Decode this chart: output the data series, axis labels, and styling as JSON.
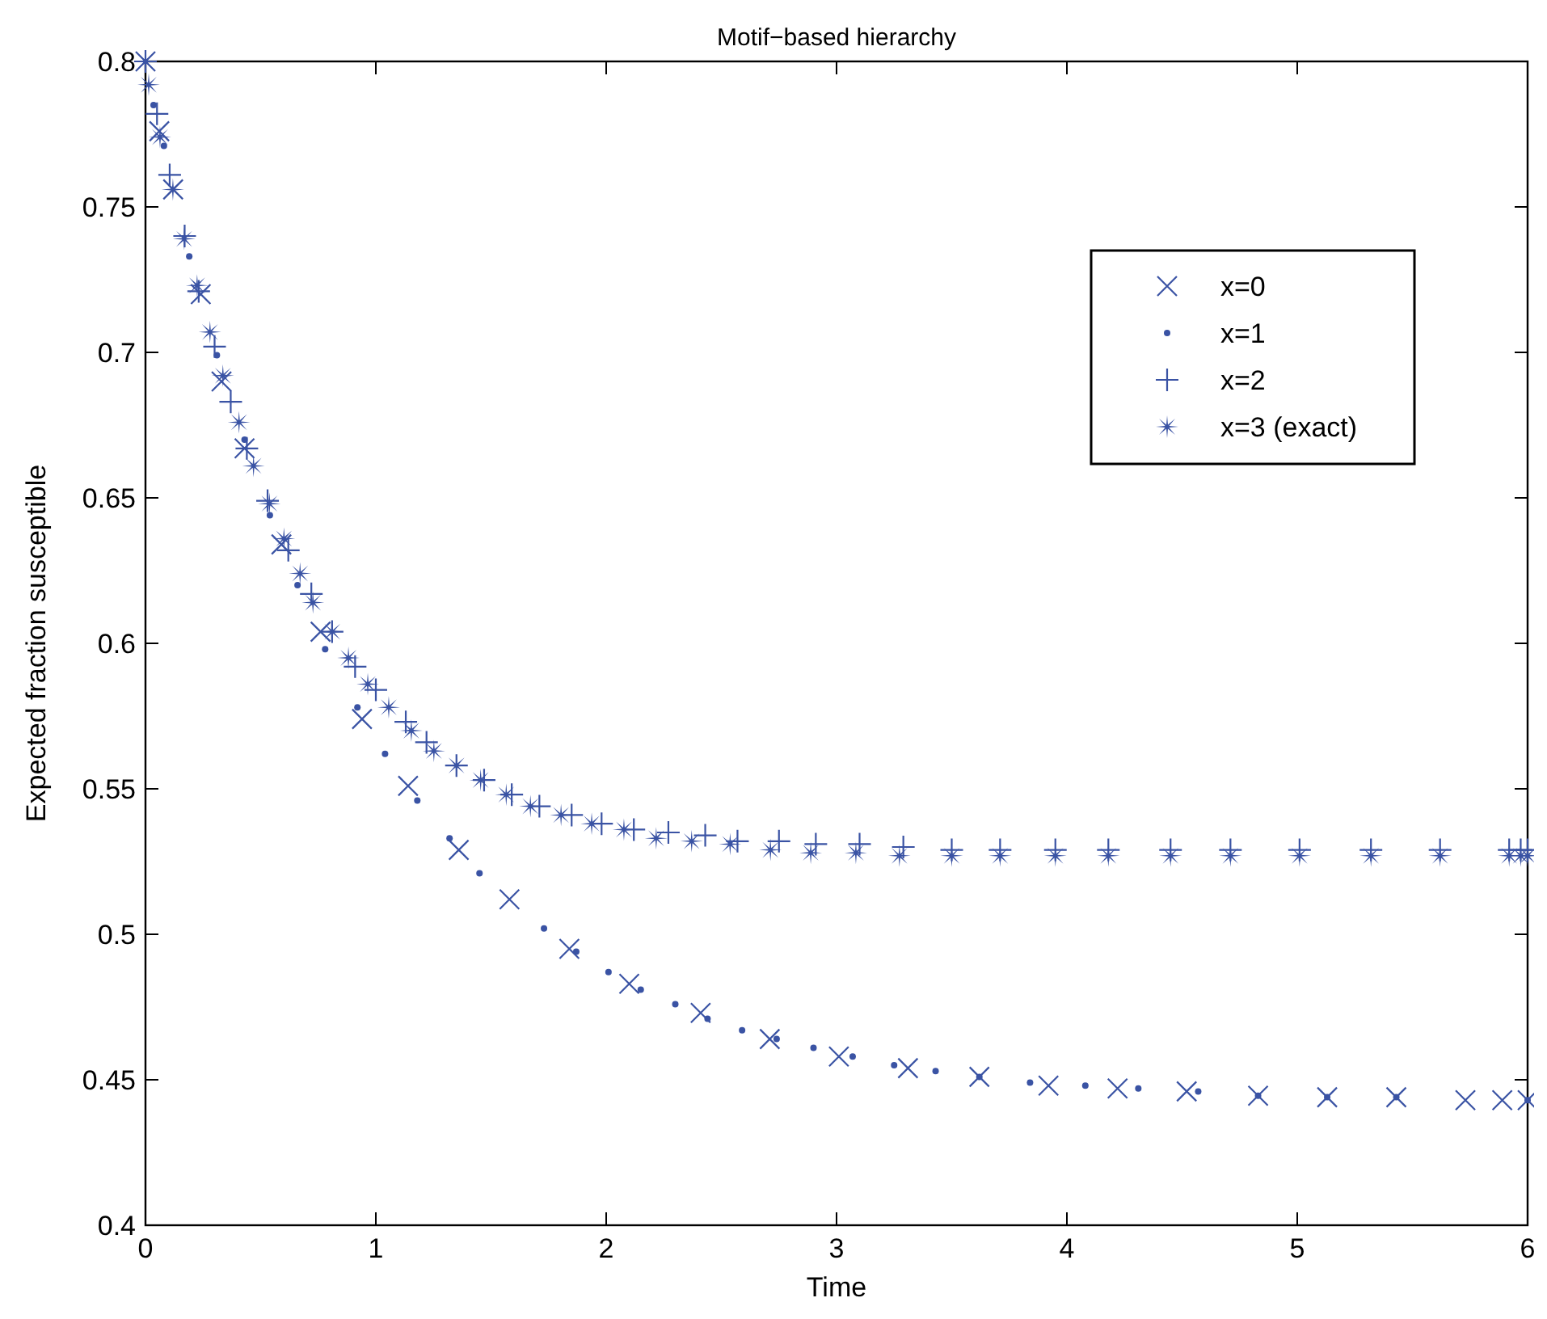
{
  "chart_data": {
    "type": "scatter",
    "title": "Motif−based hierarchy",
    "xlabel": "Time",
    "ylabel": "Expected fraction susceptible",
    "xlim": [
      0,
      6
    ],
    "ylim": [
      0.4,
      0.8
    ],
    "xticks": [
      0,
      1,
      2,
      3,
      4,
      5,
      6
    ],
    "yticks": [
      0.4,
      0.45,
      0.5,
      0.55,
      0.6,
      0.65,
      0.7,
      0.75,
      0.8
    ],
    "grid": false,
    "legend": "top right",
    "series": [
      {
        "name": "x=0",
        "color": "#3a53a4",
        "marker": "cross",
        "x": [
          0,
          0.06,
          0.12,
          0.24,
          0.33,
          0.43,
          0.59,
          0.76,
          0.94,
          1.14,
          1.36,
          1.58,
          1.84,
          2.1,
          2.41,
          2.71,
          3.01,
          3.31,
          3.62,
          3.92,
          4.22,
          4.52,
          4.83,
          5.13,
          5.43,
          5.73,
          5.89,
          6
        ],
        "values": [
          0.8,
          0.776,
          0.756,
          0.72,
          0.69,
          0.667,
          0.634,
          0.604,
          0.574,
          0.551,
          0.529,
          0.512,
          0.495,
          0.483,
          0.473,
          0.464,
          0.458,
          0.454,
          0.451,
          0.448,
          0.447,
          0.446,
          0.4445,
          0.444,
          0.444,
          0.443,
          0.443,
          0.443
        ]
      },
      {
        "name": "x=1",
        "color": "#3a53a4",
        "marker": "circle",
        "x": [
          0.035,
          0.08,
          0.19,
          0.31,
          0.43,
          0.54,
          0.66,
          0.78,
          0.92,
          1.04,
          1.18,
          1.32,
          1.45,
          1.73,
          1.87,
          2.01,
          2.15,
          2.3,
          2.44,
          2.59,
          2.74,
          2.9,
          3.07,
          3.25,
          3.43,
          3.62,
          3.84,
          4.08,
          4.31,
          4.57,
          4.83,
          5.13,
          5.43,
          6
        ],
        "values": [
          0.785,
          0.771,
          0.733,
          0.699,
          0.67,
          0.644,
          0.62,
          0.598,
          0.578,
          0.562,
          0.546,
          0.533,
          0.521,
          0.502,
          0.494,
          0.487,
          0.481,
          0.476,
          0.471,
          0.467,
          0.464,
          0.461,
          0.458,
          0.455,
          0.453,
          0.451,
          0.449,
          0.448,
          0.447,
          0.446,
          0.4445,
          0.444,
          0.444,
          0.443
        ]
      },
      {
        "name": "x=2",
        "color": "#3a53a4",
        "marker": "plus",
        "x": [
          0,
          0.05,
          0.105,
          0.17,
          0.231,
          0.3,
          0.37,
          0.44,
          0.53,
          0.62,
          0.72,
          0.81,
          0.91,
          1,
          1.13,
          1.22,
          1.35,
          1.47,
          1.59,
          1.71,
          1.85,
          1.98,
          2.12,
          2.27,
          2.43,
          2.57,
          2.75,
          2.91,
          3.1,
          3.29,
          3.5,
          3.71,
          3.95,
          4.18,
          4.45,
          4.71,
          5.01,
          5.32,
          5.62,
          5.92,
          5.97,
          6
        ],
        "values": [
          0.8,
          0.782,
          0.761,
          0.74,
          0.721,
          0.702,
          0.683,
          0.667,
          0.649,
          0.632,
          0.617,
          0.604,
          0.592,
          0.584,
          0.573,
          0.566,
          0.558,
          0.553,
          0.548,
          0.544,
          0.541,
          0.538,
          0.536,
          0.535,
          0.534,
          0.532,
          0.532,
          0.531,
          0.531,
          0.53,
          0.529,
          0.529,
          0.529,
          0.529,
          0.529,
          0.529,
          0.529,
          0.529,
          0.529,
          0.529,
          0.529,
          0.529
        ]
      },
      {
        "name": "x=3 (exact)",
        "color": "#3a53a4",
        "marker": "star",
        "x": [
          0,
          0.014,
          0.063,
          0.119,
          0.168,
          0.224,
          0.28,
          0.336,
          0.406,
          0.469,
          0.538,
          0.601,
          0.671,
          0.727,
          0.811,
          0.881,
          0.965,
          1.056,
          1.154,
          1.252,
          1.35,
          1.455,
          1.566,
          1.671,
          1.804,
          1.937,
          2.077,
          2.217,
          2.371,
          2.538,
          2.713,
          2.888,
          3.084,
          3.273,
          3.5,
          3.71,
          3.95,
          4.18,
          4.45,
          4.71,
          5.01,
          5.32,
          5.62,
          5.92,
          5.97,
          6
        ],
        "values": [
          0.8,
          0.792,
          0.774,
          0.756,
          0.739,
          0.723,
          0.707,
          0.692,
          0.676,
          0.661,
          0.648,
          0.636,
          0.624,
          0.614,
          0.604,
          0.595,
          0.586,
          0.578,
          0.57,
          0.563,
          0.558,
          0.553,
          0.548,
          0.544,
          0.541,
          0.538,
          0.536,
          0.533,
          0.532,
          0.531,
          0.529,
          0.528,
          0.528,
          0.527,
          0.527,
          0.527,
          0.527,
          0.527,
          0.527,
          0.527,
          0.527,
          0.527,
          0.527,
          0.527,
          0.527,
          0.527
        ]
      }
    ]
  }
}
